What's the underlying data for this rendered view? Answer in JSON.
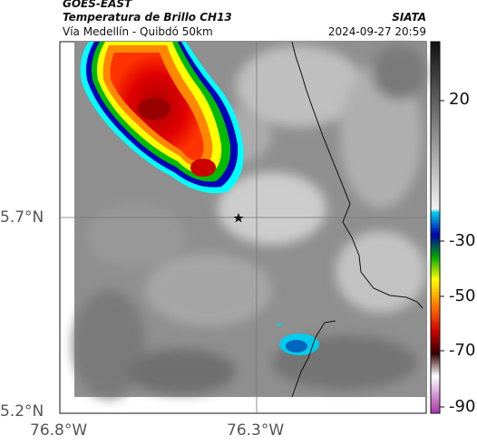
{
  "header": {
    "satellite": "GOES-EAST",
    "product": "Temperatura de Brillo CH13",
    "region": "Vía Medellín - Quibdó 50km",
    "source": "SIATA",
    "datetime": "2024-09-27 20:59"
  },
  "axes": {
    "lat_ticks": [
      "5.7°N",
      "5.2°N"
    ],
    "lon_ticks": [
      "76.8°W",
      "76.3°W"
    ]
  },
  "colorbar": {
    "tick_labels": [
      "20",
      "-30",
      "-50",
      "-70",
      "-90"
    ]
  },
  "colors": {
    "cloud_gray": "#8a8a8a",
    "cold_red": "#e00000",
    "blue_edge": "#0033aa"
  }
}
